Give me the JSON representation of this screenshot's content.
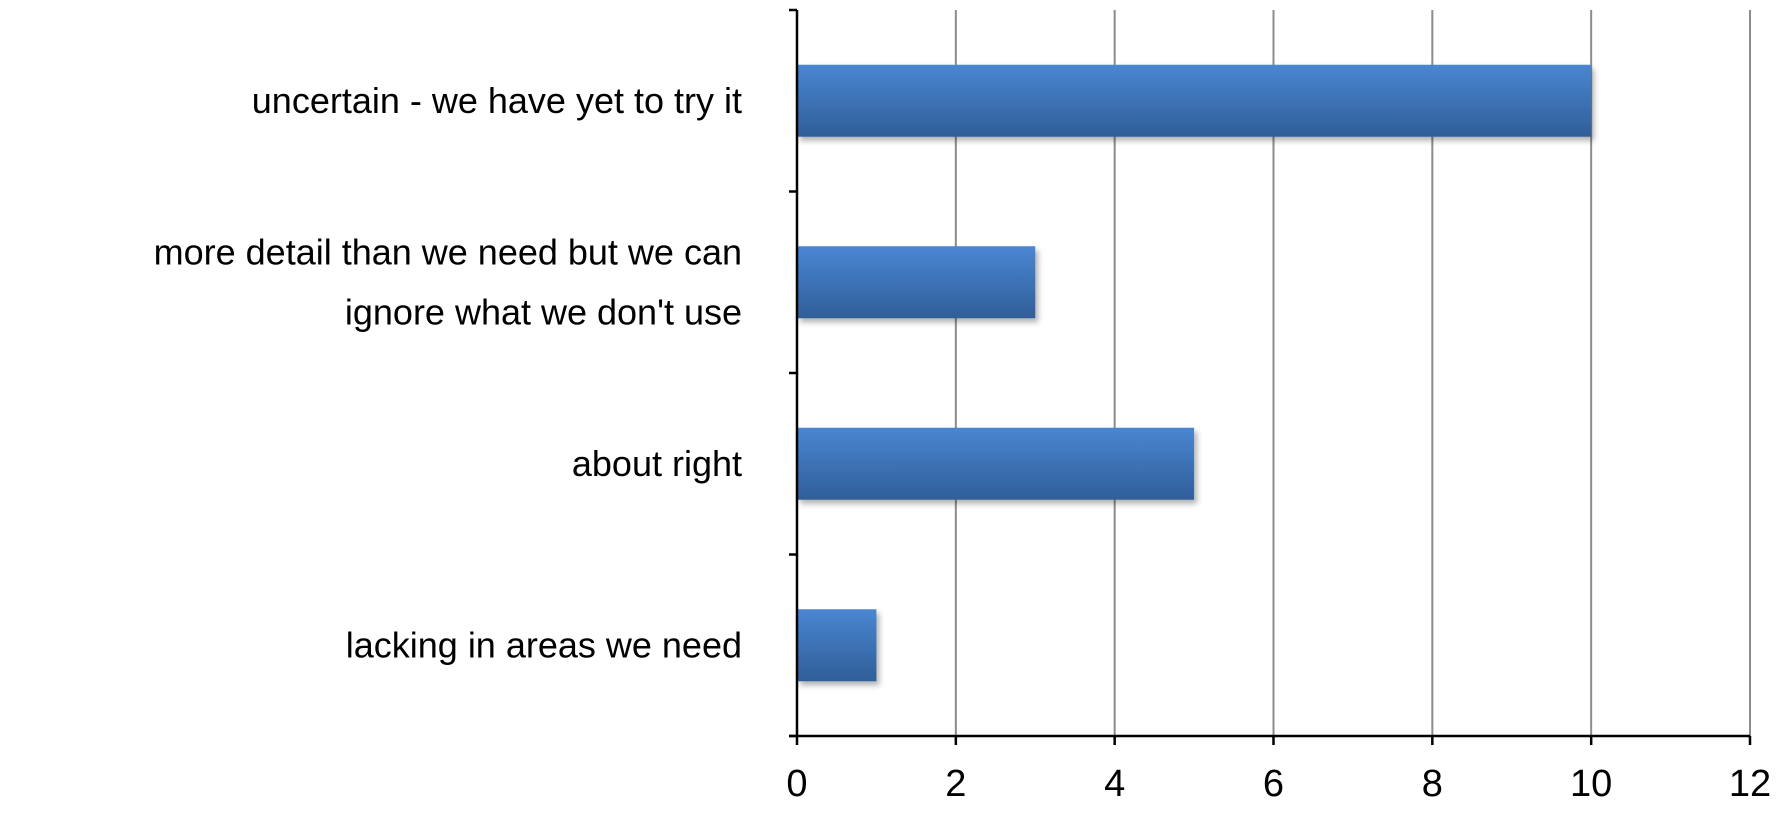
{
  "chart_data": {
    "type": "bar",
    "orientation": "horizontal",
    "title": "",
    "xlabel": "",
    "ylabel": "",
    "categories": [
      "uncertain - we have yet to try it",
      "more detail than we need but we can ignore what we don't use",
      "about right",
      "lacking in areas we need"
    ],
    "category_label_lines": [
      [
        "uncertain - we have yet to try it"
      ],
      [
        "more detail than we need but we can",
        "ignore what we don't use"
      ],
      [
        "about right"
      ],
      [
        "lacking in areas we need"
      ]
    ],
    "values": [
      10,
      3,
      5,
      1
    ],
    "xlim": [
      0,
      12
    ],
    "xticks": [
      0,
      2,
      4,
      6,
      8,
      10,
      12
    ],
    "xtick_labels": [
      "0",
      "2",
      "4",
      "6",
      "8",
      "10",
      "12"
    ],
    "grid": "vertical",
    "legend": "none",
    "colors": {
      "bar_top": "#4a86d2",
      "bar_bottom": "#2f5e98",
      "gridline": "#8c8c8c",
      "axis": "#000000"
    }
  }
}
